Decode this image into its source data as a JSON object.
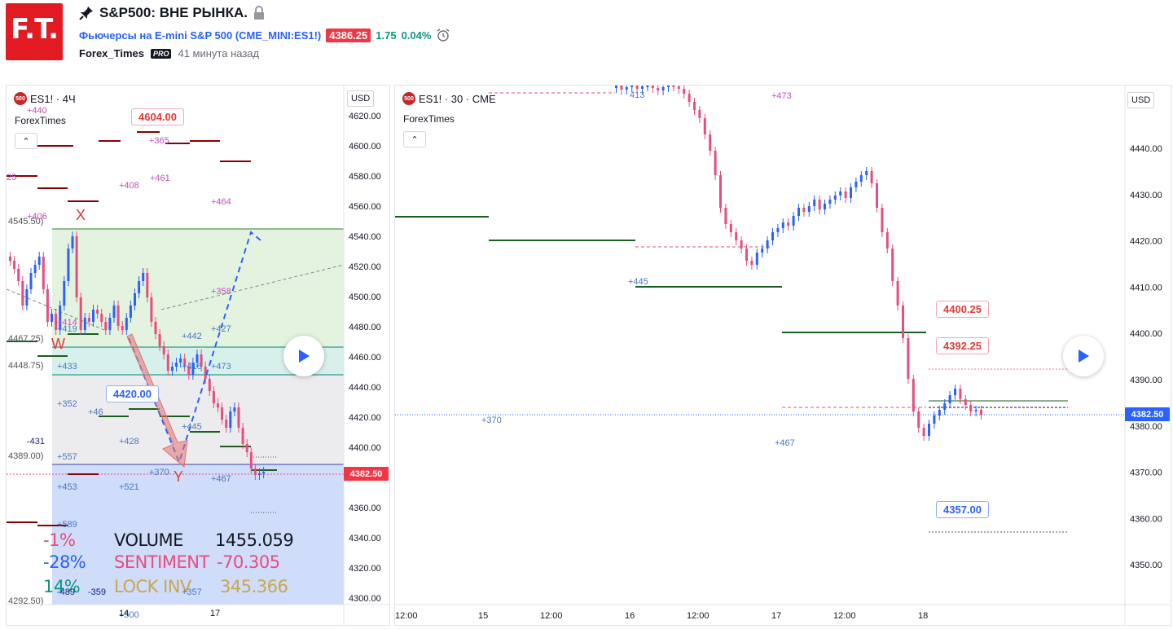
{
  "header": {
    "logo_text": "F.T.",
    "title": "S&P500: ВНЕ РЫНКА.",
    "instrument_name": "Фьючерсы на E-mini S&P 500",
    "instrument_symbol": "(CME_MINI:ES1!)",
    "last_price": "4386.25",
    "change": "1.75",
    "change_pct": "0.04%",
    "author": "Forex_Times",
    "author_badge": "PRO",
    "published": "41 минута назад"
  },
  "left_chart": {
    "symbol_label": "ES1! · 4Ч",
    "badge": "500",
    "author_label": "ForexTimes",
    "currency": "USD",
    "price_axis": [
      "4620.00",
      "4600.00",
      "4580.00",
      "4560.00",
      "4540.00",
      "4520.00",
      "4500.00",
      "4480.00",
      "4460.00",
      "4440.00",
      "4420.00",
      "4400.00",
      "4380.00",
      "4360.00",
      "4340.00",
      "4320.00",
      "4300.00"
    ],
    "current_price": "4382.50",
    "time_axis": [
      "14",
      "17"
    ],
    "callouts": {
      "top": "4604.00",
      "mid": "4420.00"
    },
    "wave_labels": {
      "x": "X",
      "w": "W",
      "y": "Y"
    },
    "level_labels": {
      "a": "4545.50)",
      "b": "4467.25)",
      "c": "4448.75)",
      "d": "4389.00)",
      "e": "4292.50)"
    },
    "stats": {
      "pct1": "-1%",
      "pct2": "-28%",
      "pct3": "14%",
      "volume_label": "VOLUME",
      "volume_value": "1455.059",
      "sentiment_label": "SENTIMENT",
      "sentiment_value": "-70.305",
      "lockinv_label": "LOCK INV",
      "lockinv_value": "345.366"
    },
    "small_labels": [
      "+440",
      "+365",
      "+408",
      "+461",
      "+464",
      "+406",
      "+414",
      "+419",
      "+433",
      "+358",
      "+442",
      "+427",
      "+473",
      "+416",
      "+352",
      "+46",
      "+445",
      "+428",
      "+557",
      "+370",
      "+453",
      "+521",
      "+467",
      "-431",
      "+589",
      "-489",
      "-359",
      "+500",
      "+357",
      "25"
    ]
  },
  "right_chart": {
    "symbol_label": "ES1! · 30 · CME",
    "badge": "500",
    "author_label": "ForexTimes",
    "currency": "USD",
    "price_axis": [
      "4440.00",
      "4430.00",
      "4420.00",
      "4410.00",
      "4400.00",
      "4390.00",
      "4380.00",
      "4370.00",
      "4360.00",
      "4350.00"
    ],
    "current_price": "4382.50",
    "time_axis": [
      "12:00",
      "15",
      "12:00",
      "16",
      "12:00",
      "17",
      "12:00",
      "18"
    ],
    "callouts": {
      "a": "4400.25",
      "b": "4392.25",
      "c": "4357.00"
    },
    "small_labels": [
      "413",
      "+473",
      "+445",
      "+370",
      "+467"
    ]
  },
  "colors": {
    "bull": "#2962ff",
    "bear": "#e84d7b",
    "green_line": "#1b5e20",
    "red_line": "#8b0000",
    "accent": "#f23645"
  }
}
